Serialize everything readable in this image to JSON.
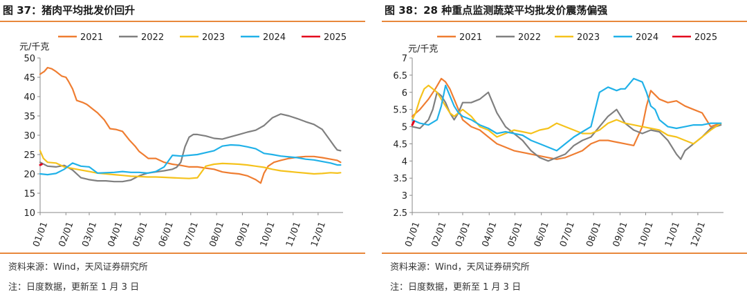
{
  "colors": {
    "2021": "#ef7d31",
    "2022": "#7f7f7f",
    "2023": "#f5c21b",
    "2024": "#20b1e8",
    "2025": "#e3001b",
    "rule": "#e8873a"
  },
  "left": {
    "title": "图 37：猪肉平均批发价回升",
    "source": "资料来源：Wind，天风证券研究所",
    "note": "注：日度数据，更新至 1 月 3 日",
    "chart_data": {
      "type": "line",
      "ylabel": "元/千克",
      "ylim": [
        10,
        50
      ],
      "yticks": [
        10,
        15,
        20,
        25,
        30,
        35,
        40,
        45,
        50
      ],
      "xticks": [
        "01/01",
        "02/01",
        "03/01",
        "04/01",
        "05/01",
        "06/01",
        "07/01",
        "08/01",
        "09/01",
        "10/01",
        "11/01",
        "12/01"
      ],
      "legend_position": "top",
      "series": [
        {
          "name": "2021",
          "color": "#ef7d31",
          "x": [
            1,
            6,
            10,
            15,
            20,
            27,
            32,
            35,
            40,
            45,
            52,
            57,
            60,
            64,
            70,
            78,
            85,
            92,
            100,
            108,
            115,
            120,
            125,
            131,
            140,
            150,
            160,
            170,
            180,
            190,
            200,
            210,
            220,
            230,
            240,
            250,
            260,
            266,
            270,
            275,
            282,
            290,
            300,
            310,
            320,
            330,
            340,
            350,
            358,
            362
          ],
          "y": [
            45.8,
            46.5,
            47.5,
            47.2,
            46.5,
            45.3,
            45,
            44,
            42,
            39,
            38.5,
            38,
            37.5,
            36.8,
            35.8,
            34,
            31.7,
            31.5,
            31,
            28.8,
            27.2,
            25.8,
            25,
            24,
            24,
            23,
            22.5,
            22.2,
            21.8,
            21.8,
            21.5,
            21.2,
            20.5,
            20.2,
            20,
            19.5,
            18.5,
            17.6,
            20.2,
            22,
            23,
            23.5,
            24,
            24.3,
            24.5,
            24.5,
            24.2,
            23.8,
            23.5,
            23
          ]
        },
        {
          "name": "2022",
          "color": "#7f7f7f",
          "x": [
            1,
            10,
            20,
            30,
            40,
            50,
            60,
            70,
            80,
            90,
            100,
            110,
            120,
            130,
            140,
            150,
            160,
            165,
            170,
            175,
            180,
            185,
            190,
            200,
            210,
            220,
            230,
            240,
            250,
            260,
            270,
            280,
            290,
            300,
            310,
            320,
            330,
            340,
            350,
            355,
            358,
            362
          ],
          "y": [
            23,
            22,
            21.8,
            22.2,
            21,
            19,
            18.5,
            18.2,
            18.2,
            18,
            18,
            18.4,
            19.5,
            20.2,
            20.5,
            20.8,
            21.2,
            21.7,
            23,
            27,
            29.5,
            30.2,
            30.2,
            29.8,
            29.2,
            29,
            29.6,
            30.2,
            30.8,
            31.3,
            32.5,
            34.5,
            35.5,
            35,
            34.3,
            33.5,
            32.8,
            31.5,
            28.5,
            27,
            26.2,
            26
          ]
        },
        {
          "name": "2023",
          "color": "#f5c21b",
          "x": [
            1,
            5,
            10,
            20,
            30,
            40,
            50,
            60,
            70,
            80,
            90,
            100,
            110,
            120,
            130,
            140,
            150,
            160,
            170,
            180,
            190,
            200,
            210,
            220,
            230,
            240,
            250,
            260,
            270,
            280,
            290,
            300,
            310,
            320,
            330,
            340,
            350,
            358,
            362
          ],
          "y": [
            26,
            24,
            23,
            22.8,
            21.8,
            21.4,
            21,
            20.6,
            20.2,
            20,
            19.8,
            19.6,
            19.4,
            19.3,
            19.2,
            19.2,
            19.1,
            19,
            18.9,
            18.8,
            19,
            22,
            22.5,
            22.7,
            22.6,
            22.5,
            22.3,
            22,
            21.7,
            21.2,
            20.8,
            20.6,
            20.4,
            20.2,
            20,
            20.1,
            20.3,
            20.2,
            20.3
          ]
        },
        {
          "name": "2024",
          "color": "#20b1e8",
          "x": [
            1,
            10,
            20,
            30,
            40,
            50,
            60,
            70,
            80,
            90,
            100,
            110,
            120,
            130,
            140,
            150,
            160,
            170,
            180,
            190,
            200,
            210,
            220,
            230,
            240,
            250,
            260,
            270,
            280,
            290,
            300,
            310,
            320,
            330,
            340,
            350,
            358,
            362
          ],
          "y": [
            20,
            19.8,
            20.1,
            21.2,
            22.8,
            22,
            21.8,
            20.2,
            20.3,
            20.4,
            20.6,
            20.4,
            20.4,
            20.2,
            20.6,
            21.8,
            24.8,
            24.6,
            24.8,
            25,
            25.5,
            26,
            27.2,
            27.5,
            27.4,
            27,
            26.5,
            25.3,
            25,
            24.6,
            24.4,
            24.2,
            23.8,
            23.6,
            23.2,
            22.8,
            22.3,
            22.3
          ]
        },
        {
          "name": "2025",
          "color": "#e3001b",
          "x": [
            1,
            2,
            3
          ],
          "y": [
            22.3,
            22.4,
            22.5
          ]
        }
      ]
    }
  },
  "right": {
    "title": "图 38：28 种重点监测蔬菜平均批发价震荡偏强",
    "source": "资料来源：Wind，天风证券研究所",
    "note": "注：日度数据，更新至 1 月 3 日",
    "chart_data": {
      "type": "line",
      "ylabel": "元/千克",
      "ylim": [
        2.5,
        7
      ],
      "yticks": [
        2.5,
        3,
        3.5,
        4,
        4.5,
        5,
        5.5,
        6,
        6.5,
        7
      ],
      "ytick_labels": [
        "2.5",
        "3",
        "3.5",
        "4",
        "4.5",
        "5",
        "5.5",
        "6",
        "6.5",
        "7"
      ],
      "xticks": [
        "01/01",
        "02/01",
        "03/01",
        "04/01",
        "05/01",
        "06/01",
        "07/01",
        "08/01",
        "09/01",
        "10/01",
        "11/01",
        "12/01"
      ],
      "legend_position": "top",
      "series": [
        {
          "name": "2021",
          "color": "#ef7d31",
          "x": [
            1,
            10,
            20,
            28,
            35,
            40,
            45,
            50,
            55,
            60,
            70,
            80,
            90,
            100,
            110,
            120,
            130,
            140,
            150,
            160,
            170,
            180,
            190,
            200,
            210,
            220,
            230,
            240,
            250,
            260,
            270,
            275,
            280,
            290,
            300,
            310,
            320,
            330,
            340,
            350,
            362
          ],
          "y": [
            5.3,
            5.5,
            5.8,
            6.1,
            6.4,
            6.3,
            6.1,
            5.8,
            5.5,
            5.2,
            5,
            4.9,
            4.7,
            4.5,
            4.4,
            4.3,
            4.25,
            4.2,
            4.15,
            4.1,
            4.05,
            4.1,
            4.2,
            4.3,
            4.5,
            4.6,
            4.6,
            4.55,
            4.5,
            4.45,
            5,
            5.6,
            6.05,
            5.8,
            5.7,
            5.75,
            5.6,
            5.5,
            5.4,
            5,
            5.1
          ]
        },
        {
          "name": "2022",
          "color": "#7f7f7f",
          "x": [
            1,
            10,
            20,
            25,
            30,
            35,
            40,
            45,
            50,
            55,
            60,
            70,
            80,
            90,
            100,
            110,
            120,
            130,
            140,
            150,
            160,
            170,
            180,
            190,
            200,
            210,
            220,
            230,
            240,
            250,
            260,
            270,
            280,
            290,
            300,
            310,
            315,
            320,
            330,
            340,
            350,
            362
          ],
          "y": [
            5,
            4.95,
            5.2,
            5.5,
            6,
            5.9,
            5.7,
            5.4,
            5.2,
            5.4,
            5.7,
            5.7,
            5.8,
            6,
            5.4,
            5,
            4.8,
            4.6,
            4.3,
            4.1,
            4,
            4.1,
            4.2,
            4.45,
            4.6,
            4.7,
            5,
            5.3,
            5.5,
            5.1,
            4.9,
            4.8,
            4.9,
            4.85,
            4.6,
            4.2,
            4.05,
            4.3,
            4.5,
            4.7,
            4.95,
            5.05
          ]
        },
        {
          "name": "2023",
          "color": "#f5c21b",
          "x": [
            1,
            5,
            10,
            15,
            20,
            25,
            30,
            35,
            40,
            45,
            50,
            55,
            60,
            70,
            80,
            90,
            100,
            110,
            120,
            130,
            140,
            150,
            160,
            170,
            180,
            190,
            200,
            210,
            220,
            230,
            240,
            250,
            260,
            270,
            280,
            290,
            300,
            310,
            320,
            330,
            340,
            350,
            362
          ],
          "y": [
            5.2,
            5.4,
            5.8,
            6.1,
            6.2,
            6.1,
            6,
            5.8,
            5.6,
            5.4,
            5.3,
            5.4,
            5.5,
            5.3,
            5,
            4.9,
            4.7,
            4.8,
            4.9,
            4.85,
            4.8,
            4.9,
            4.95,
            5.1,
            5,
            4.9,
            4.8,
            4.8,
            4.9,
            5.1,
            5.2,
            5.1,
            5.05,
            5,
            4.95,
            4.9,
            4.75,
            4.7,
            4.6,
            4.5,
            4.7,
            4.9,
            5.1
          ]
        },
        {
          "name": "2024",
          "color": "#20b1e8",
          "x": [
            1,
            10,
            20,
            30,
            35,
            40,
            45,
            50,
            55,
            60,
            70,
            80,
            90,
            100,
            110,
            120,
            130,
            140,
            150,
            160,
            170,
            180,
            190,
            200,
            210,
            220,
            230,
            235,
            240,
            245,
            250,
            260,
            270,
            275,
            280,
            285,
            290,
            300,
            310,
            320,
            330,
            340,
            350,
            362
          ],
          "y": [
            5.2,
            5.1,
            5.05,
            5.2,
            5.6,
            6.2,
            5.9,
            5.6,
            5.4,
            5.3,
            5.2,
            5.05,
            4.95,
            4.8,
            4.85,
            4.8,
            4.75,
            4.6,
            4.5,
            4.4,
            4.3,
            4.5,
            4.7,
            4.85,
            5,
            6,
            6.15,
            6.1,
            6.05,
            6.1,
            6.1,
            6.4,
            6.3,
            6,
            5.6,
            5.5,
            5.2,
            5,
            4.95,
            5,
            5.05,
            5.05,
            5.1,
            5.1
          ]
        },
        {
          "name": "2025",
          "color": "#e3001b",
          "x": [
            1,
            2,
            3
          ],
          "y": [
            5.05,
            5.1,
            5.15
          ]
        }
      ]
    }
  }
}
